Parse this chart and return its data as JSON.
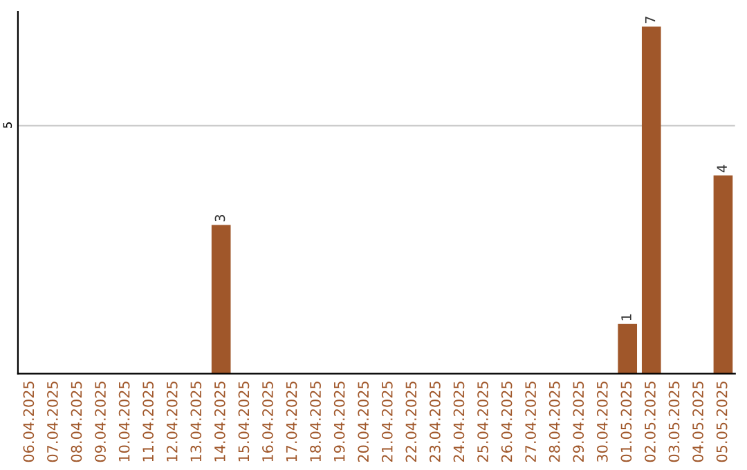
{
  "chart_data": {
    "type": "bar",
    "categories": [
      "06.04.2025",
      "07.04.2025",
      "08.04.2025",
      "09.04.2025",
      "10.04.2025",
      "11.04.2025",
      "12.04.2025",
      "13.04.2025",
      "14.04.2025",
      "15.04.2025",
      "16.04.2025",
      "17.04.2025",
      "18.04.2025",
      "19.04.2025",
      "20.04.2025",
      "21.04.2025",
      "22.04.2025",
      "23.04.2025",
      "24.04.2025",
      "25.04.2025",
      "26.04.2025",
      "27.04.2025",
      "28.04.2025",
      "29.04.2025",
      "30.04.2025",
      "01.05.2025",
      "02.05.2025",
      "03.05.2025",
      "04.05.2025",
      "05.05.2025"
    ],
    "series": [
      {
        "color": "#a0572a",
        "values": [
          0,
          0,
          0,
          0,
          0,
          0,
          0,
          0,
          3,
          0,
          0,
          0,
          0,
          0,
          0,
          0,
          0,
          0,
          0,
          0,
          0,
          0,
          0,
          0,
          0,
          1,
          7,
          0,
          0,
          4
        ],
        "value_labels": [
          null,
          null,
          null,
          null,
          null,
          null,
          null,
          null,
          "3",
          null,
          null,
          null,
          null,
          null,
          null,
          null,
          null,
          null,
          null,
          null,
          null,
          null,
          null,
          null,
          null,
          "1",
          "7",
          null,
          null,
          "4"
        ]
      }
    ],
    "ylim": [
      0,
      7.3
    ],
    "yticks": [
      5
    ],
    "grid": "y",
    "legend": false
  }
}
